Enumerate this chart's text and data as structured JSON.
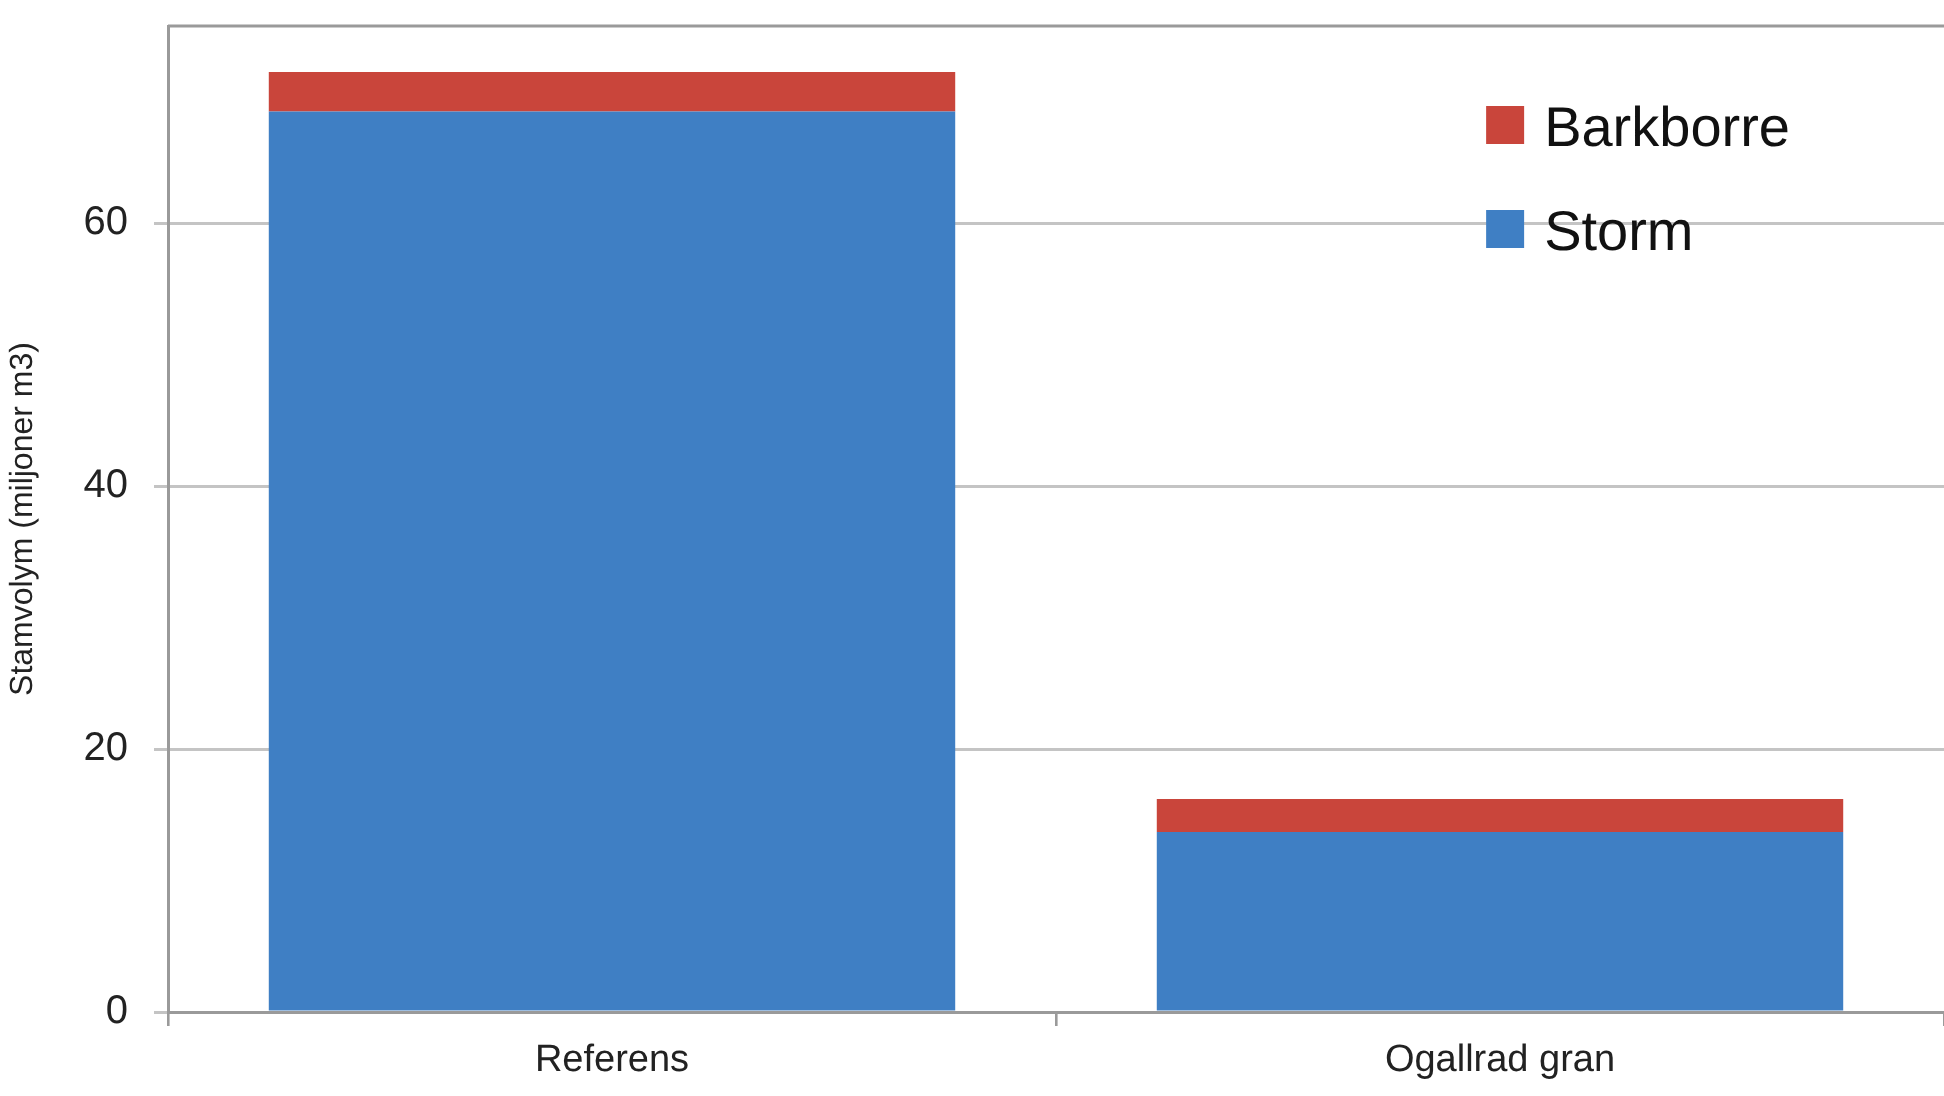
{
  "chart_data": {
    "type": "bar",
    "ylabel": "Stamvolym (miljoner m3)",
    "categories": [
      "Referens",
      "Ogallrad gran"
    ],
    "series": [
      {
        "name": "Storm",
        "color": "#3f7fc4",
        "values": [
          68.5,
          13.7
        ]
      },
      {
        "name": "Barkborre",
        "color": "#c9453b",
        "values": [
          3.0,
          2.5
        ]
      }
    ],
    "stacked": true,
    "ylim": [
      0,
      75
    ],
    "yticks": [
      0,
      20,
      40,
      60
    ],
    "grid": "y",
    "legend": "top right"
  }
}
